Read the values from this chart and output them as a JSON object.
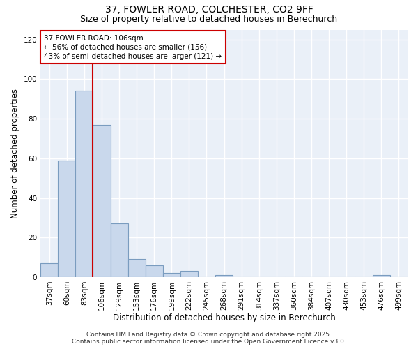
{
  "title_line1": "37, FOWLER ROAD, COLCHESTER, CO2 9FF",
  "title_line2": "Size of property relative to detached houses in Berechurch",
  "xlabel": "Distribution of detached houses by size in Berechurch",
  "ylabel": "Number of detached properties",
  "bar_labels": [
    "37sqm",
    "60sqm",
    "83sqm",
    "106sqm",
    "129sqm",
    "153sqm",
    "176sqm",
    "199sqm",
    "222sqm",
    "245sqm",
    "268sqm",
    "291sqm",
    "314sqm",
    "337sqm",
    "360sqm",
    "384sqm",
    "407sqm",
    "430sqm",
    "453sqm",
    "476sqm",
    "499sqm"
  ],
  "bar_values": [
    7,
    59,
    94,
    77,
    27,
    9,
    6,
    2,
    3,
    0,
    1,
    0,
    0,
    0,
    0,
    0,
    0,
    0,
    0,
    1,
    0
  ],
  "bar_color": "#c9d8ec",
  "bar_edgecolor": "#7a9cbf",
  "bar_linewidth": 0.8,
  "red_line_index": 3,
  "annotation_title": "37 FOWLER ROAD: 106sqm",
  "annotation_line2": "← 56% of detached houses are smaller (156)",
  "annotation_line3": "43% of semi-detached houses are larger (121) →",
  "annotation_box_facecolor": "#ffffff",
  "annotation_box_edgecolor": "#cc0000",
  "ylim_max": 125,
  "yticks": [
    0,
    20,
    40,
    60,
    80,
    100,
    120
  ],
  "plot_bg_color": "#eaf0f8",
  "fig_bg_color": "#ffffff",
  "red_line_color": "#cc0000",
  "grid_color": "#ffffff",
  "title_fontsize": 10,
  "subtitle_fontsize": 9,
  "axis_label_fontsize": 8.5,
  "tick_fontsize": 7.5,
  "footer_fontsize": 6.5,
  "annotation_fontsize": 7.5,
  "footer_line1": "Contains HM Land Registry data © Crown copyright and database right 2025.",
  "footer_line2": "Contains public sector information licensed under the Open Government Licence v3.0."
}
